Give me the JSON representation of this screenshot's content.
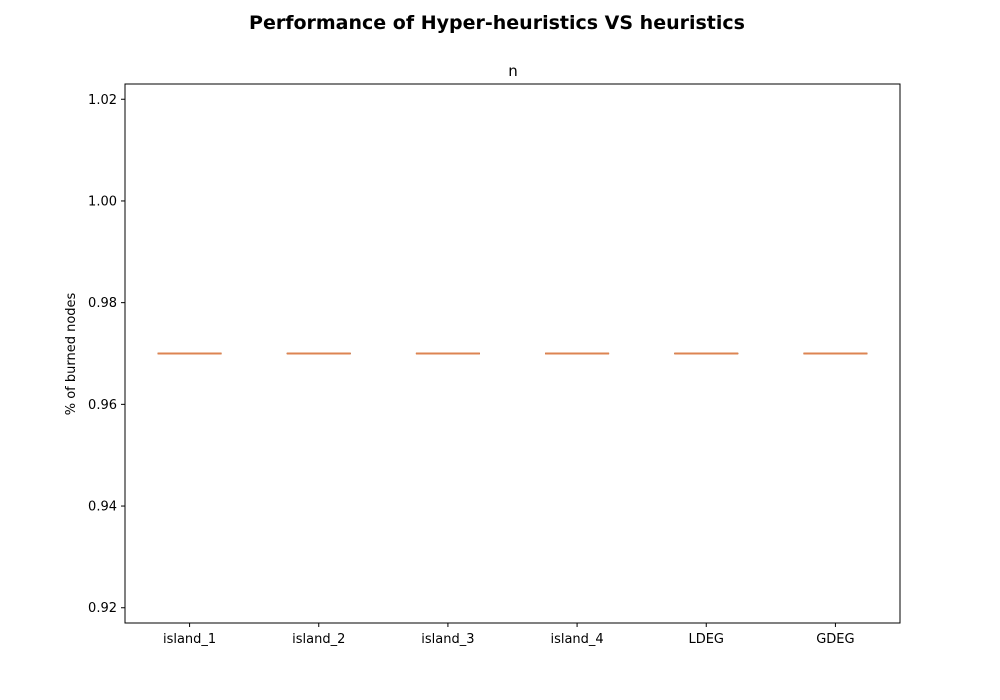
{
  "chart_data": {
    "type": "box",
    "title": "Performance of Hyper-heuristics VS heuristics",
    "subtitle": "n",
    "xlabel": "",
    "ylabel": "% of burned nodes",
    "categories": [
      "island_1",
      "island_2",
      "island_3",
      "island_4",
      "LDEG",
      "GDEG"
    ],
    "values": [
      0.97,
      0.97,
      0.97,
      0.97,
      0.97,
      0.97
    ],
    "ylim": [
      0.917,
      1.023
    ],
    "yticks": [
      0.92,
      0.94,
      0.96,
      0.98,
      1.0,
      1.02
    ],
    "ytick_labels": [
      "0.92",
      "0.94",
      "0.96",
      "0.98",
      "1.00",
      "1.02"
    ],
    "grid": false,
    "colors": {
      "median": "#dd8452",
      "box": "#1f1f1f",
      "axes": "#000000"
    }
  }
}
